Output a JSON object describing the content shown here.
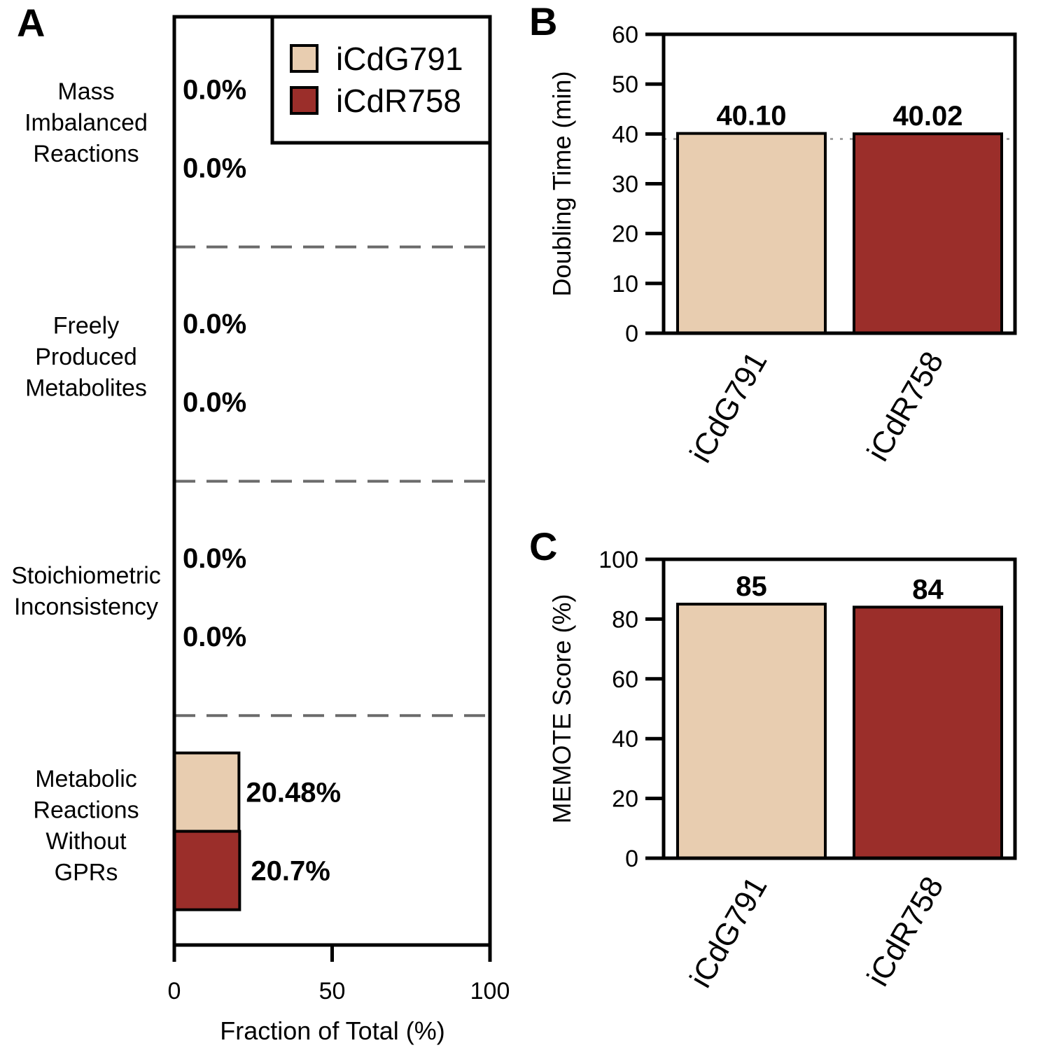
{
  "colors": {
    "iCdG791": "#e8cdb0",
    "iCdR758": "#9b2e2a",
    "divider": "#6b6b6b",
    "reference_line": "#a0a0a0"
  },
  "chart_data": [
    {
      "panel": "A",
      "type": "bar",
      "orientation": "horizontal",
      "categories": [
        "Mass Imbalanced Reactions",
        "Freely Produced Metabolites",
        "Stoichiometric Inconsistency",
        "Metabolic Reactions Without GPRs"
      ],
      "category_lines": [
        [
          "Mass",
          "Imbalanced",
          "Reactions"
        ],
        [
          "Freely",
          "Produced",
          "Metabolites"
        ],
        [
          "Stoichiometric",
          "Inconsistency"
        ],
        [
          "Metabolic",
          "Reactions",
          "Without",
          "GPRs"
        ]
      ],
      "series": [
        {
          "name": "iCdG791",
          "values": [
            0.0,
            0.0,
            0.0,
            20.48
          ],
          "labels": [
            "0.0%",
            "0.0%",
            "0.0%",
            "20.48%"
          ]
        },
        {
          "name": "iCdR758",
          "values": [
            0.0,
            0.0,
            0.0,
            20.7
          ],
          "labels": [
            "0.0%",
            "0.0%",
            "0.0%",
            "20.7%"
          ]
        }
      ],
      "xlabel": "Fraction of Total (%)",
      "xlim": [
        0,
        100
      ],
      "xticks": [
        "0",
        "50",
        "100"
      ],
      "legend": "top-right",
      "category_dividers": "dashed"
    },
    {
      "panel": "B",
      "type": "bar",
      "categories": [
        "iCdG791",
        "iCdR758"
      ],
      "values": [
        40.1,
        40.02
      ],
      "labels": [
        "40.10",
        "40.02"
      ],
      "ylabel": "Doubling Time (min)",
      "ylim": [
        0,
        60
      ],
      "yticks": [
        "0",
        "10",
        "20",
        "30",
        "40",
        "50",
        "60"
      ],
      "reference_line": 39,
      "reference_style": "dotted"
    },
    {
      "panel": "C",
      "type": "bar",
      "categories": [
        "iCdG791",
        "iCdR758"
      ],
      "values": [
        85,
        84
      ],
      "labels": [
        "85",
        "84"
      ],
      "ylabel": "MEMOTE Score (%)",
      "ylim": [
        0,
        100
      ],
      "yticks": [
        "0",
        "20",
        "40",
        "60",
        "80",
        "100"
      ]
    }
  ]
}
